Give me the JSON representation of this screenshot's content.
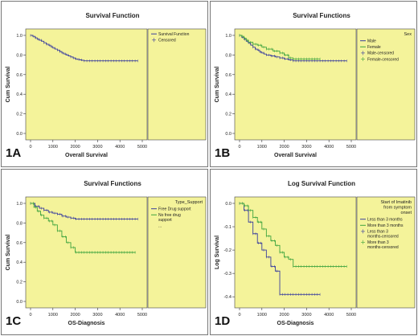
{
  "chart_data": [
    {
      "panel": "1A",
      "type": "line",
      "title": "Survival Function",
      "xlabel": "Overall Survival",
      "ylabel": "Cum Survival",
      "xlim": [
        0,
        5000
      ],
      "ylim": [
        0.0,
        1.0
      ],
      "xticks": [
        "0",
        "1000",
        "2000",
        "3000",
        "4000",
        "5000"
      ],
      "yticks": [
        "0.0",
        "0.2",
        "0.4",
        "0.6",
        "0.8",
        "1.0"
      ],
      "legend_title": "",
      "legend": [
        "Survival Function",
        "Censored"
      ],
      "series": [
        {
          "name": "Survival Function",
          "color": "#3b3f9e",
          "x": [
            0,
            100,
            200,
            300,
            400,
            500,
            600,
            700,
            800,
            900,
            1000,
            1100,
            1200,
            1300,
            1400,
            1500,
            1600,
            1700,
            1800,
            1900,
            2000,
            2100,
            2200,
            2300,
            2400,
            2600,
            3000,
            3500,
            4000,
            4800
          ],
          "y": [
            1.0,
            0.99,
            0.975,
            0.96,
            0.95,
            0.94,
            0.925,
            0.91,
            0.9,
            0.885,
            0.87,
            0.86,
            0.85,
            0.835,
            0.82,
            0.81,
            0.8,
            0.79,
            0.78,
            0.77,
            0.76,
            0.755,
            0.75,
            0.745,
            0.74,
            0.74,
            0.74,
            0.74,
            0.74,
            0.74
          ]
        }
      ]
    },
    {
      "panel": "1B",
      "type": "line",
      "title": "Survival Functions",
      "xlabel": "Overall Survival",
      "ylabel": "Cum Survival",
      "xlim": [
        0,
        5000
      ],
      "ylim": [
        0.0,
        1.0
      ],
      "xticks": [
        "0",
        "1000",
        "2000",
        "3000",
        "4000",
        "5000"
      ],
      "yticks": [
        "0.0",
        "0.2",
        "0.4",
        "0.6",
        "0.8",
        "1.0"
      ],
      "legend_title": "Sex",
      "legend": [
        "Male",
        "Female",
        "Male-censored",
        "Female-censored"
      ],
      "series": [
        {
          "name": "Male",
          "color": "#3b3f9e",
          "x": [
            0,
            100,
            200,
            300,
            400,
            500,
            600,
            700,
            800,
            900,
            1000,
            1100,
            1200,
            1400,
            1600,
            1800,
            2000,
            2200,
            2400,
            3000,
            4000,
            4800
          ],
          "y": [
            1.0,
            0.98,
            0.96,
            0.94,
            0.92,
            0.9,
            0.88,
            0.86,
            0.85,
            0.83,
            0.82,
            0.81,
            0.8,
            0.79,
            0.78,
            0.77,
            0.76,
            0.75,
            0.74,
            0.74,
            0.74,
            0.74
          ]
        },
        {
          "name": "Female",
          "color": "#3fa43f",
          "x": [
            0,
            100,
            200,
            300,
            400,
            600,
            800,
            1000,
            1200,
            1500,
            1800,
            2000,
            2200,
            2400,
            3000,
            3600
          ],
          "y": [
            1.0,
            0.99,
            0.97,
            0.95,
            0.93,
            0.91,
            0.9,
            0.88,
            0.86,
            0.84,
            0.82,
            0.8,
            0.77,
            0.76,
            0.76,
            0.76
          ]
        }
      ]
    },
    {
      "panel": "1C",
      "type": "line",
      "title": "Survival Functions",
      "xlabel": "OS-Diagnosis",
      "ylabel": "Cum Survival",
      "xlim": [
        0,
        5000
      ],
      "ylim": [
        0.0,
        1.0
      ],
      "xticks": [
        "0",
        "1000",
        "2000",
        "3000",
        "4000",
        "5000"
      ],
      "yticks": [
        "0.0",
        "0.2",
        "0.4",
        "0.6",
        "0.8",
        "1.0"
      ],
      "legend_title": "Type_Support",
      "legend": [
        "Free Drug support",
        "No free drug support",
        "..."
      ],
      "series": [
        {
          "name": "Free Drug support",
          "color": "#3b3f9e",
          "x": [
            0,
            200,
            400,
            600,
            800,
            1000,
            1200,
            1400,
            1600,
            1800,
            2000,
            2200,
            2400,
            3000,
            3500,
            4000,
            4800
          ],
          "y": [
            1.0,
            0.97,
            0.95,
            0.93,
            0.91,
            0.9,
            0.89,
            0.87,
            0.86,
            0.85,
            0.84,
            0.84,
            0.84,
            0.84,
            0.84,
            0.84,
            0.84
          ]
        },
        {
          "name": "No free drug support",
          "color": "#3fa43f",
          "x": [
            0,
            150,
            300,
            450,
            600,
            800,
            1000,
            1200,
            1400,
            1600,
            1800,
            2000,
            2200,
            2400,
            3000,
            3500,
            4000,
            4700
          ],
          "y": [
            1.0,
            0.96,
            0.92,
            0.88,
            0.85,
            0.82,
            0.78,
            0.72,
            0.66,
            0.6,
            0.55,
            0.5,
            0.5,
            0.5,
            0.5,
            0.5,
            0.5,
            0.5
          ]
        }
      ]
    },
    {
      "panel": "1D",
      "type": "line",
      "title": "Log Survival Function",
      "xlabel": "OS-Diagnosis",
      "ylabel": "Log Survival",
      "xlim": [
        0,
        5000
      ],
      "ylim": [
        -0.42,
        0.0
      ],
      "xticks": [
        "0",
        "1000",
        "2000",
        "3000",
        "4000",
        "5000"
      ],
      "yticks": [
        "0.0",
        "-0.1",
        "-0.2",
        "-0.3",
        "-0.4"
      ],
      "legend_title": "Start of Imatinib from symptom onset",
      "legend": [
        "Less than 3 months",
        "More than 3 months",
        "Less than 3 months-censored",
        "More than 3 months-censored"
      ],
      "series": [
        {
          "name": "Less than 3 months",
          "color": "#3b3f9e",
          "x": [
            0,
            200,
            400,
            600,
            800,
            1000,
            1200,
            1400,
            1600,
            1800,
            1800,
            2000,
            2500,
            3000,
            3600
          ],
          "y": [
            0.0,
            -0.03,
            -0.08,
            -0.13,
            -0.17,
            -0.2,
            -0.23,
            -0.27,
            -0.29,
            -0.29,
            -0.39,
            -0.39,
            -0.39,
            -0.39,
            -0.39
          ]
        },
        {
          "name": "More than 3 months",
          "color": "#3fa43f",
          "x": [
            0,
            200,
            400,
            600,
            800,
            1000,
            1200,
            1400,
            1600,
            1800,
            2000,
            2200,
            2400,
            2600,
            3000,
            4000,
            4800
          ],
          "y": [
            0.0,
            -0.01,
            -0.03,
            -0.06,
            -0.08,
            -0.11,
            -0.14,
            -0.16,
            -0.18,
            -0.21,
            -0.23,
            -0.24,
            -0.27,
            -0.27,
            -0.27,
            -0.27,
            -0.27
          ]
        }
      ]
    }
  ]
}
